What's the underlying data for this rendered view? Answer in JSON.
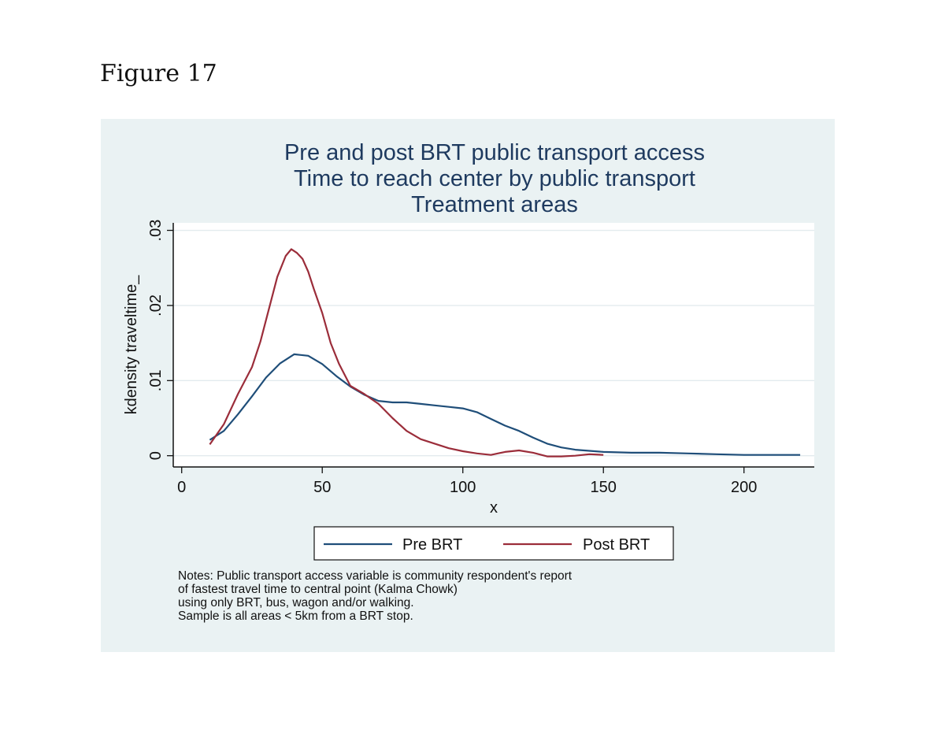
{
  "figure_label": "Figure 17",
  "chart_data": {
    "type": "line",
    "title": [
      "Pre and post BRT public transport access",
      "Time to reach center by public transport",
      "Treatment areas"
    ],
    "xlabel": "x",
    "ylabel": "kdensity traveltime_",
    "xlim": [
      -3,
      225
    ],
    "ylim": [
      -0.0015,
      0.031
    ],
    "xticks": [
      0,
      50,
      100,
      150,
      200
    ],
    "xtick_labels": [
      "0",
      "50",
      "100",
      "150",
      "200"
    ],
    "yticks": [
      0,
      0.01,
      0.02,
      0.03
    ],
    "ytick_labels": [
      "0",
      ".01",
      ".02",
      ".03"
    ],
    "grid": true,
    "legend": "bottom",
    "series": [
      {
        "name": "Pre BRT",
        "color": "#1f4e79",
        "x": [
          10,
          15,
          20,
          25,
          30,
          35,
          40,
          45,
          50,
          55,
          60,
          65,
          70,
          75,
          80,
          85,
          90,
          95,
          100,
          105,
          110,
          115,
          120,
          125,
          130,
          135,
          140,
          150,
          160,
          170,
          180,
          190,
          200,
          210,
          220
        ],
        "y": [
          0.0021,
          0.0033,
          0.0055,
          0.0079,
          0.0104,
          0.0123,
          0.0135,
          0.0133,
          0.0122,
          0.0106,
          0.0092,
          0.0081,
          0.0073,
          0.0071,
          0.0071,
          0.0069,
          0.0067,
          0.0065,
          0.0063,
          0.0058,
          0.0049,
          0.004,
          0.0033,
          0.0024,
          0.0016,
          0.0011,
          0.0008,
          0.0005,
          0.0004,
          0.0004,
          0.0003,
          0.0002,
          0.0001,
          0.0001,
          0.0001
        ]
      },
      {
        "name": "Post BRT",
        "color": "#9b2d3a",
        "x": [
          10,
          15,
          20,
          25,
          28,
          31,
          34,
          37,
          39,
          41,
          43,
          45,
          47,
          50,
          53,
          56,
          60,
          65,
          70,
          75,
          80,
          85,
          90,
          95,
          100,
          105,
          110,
          115,
          120,
          125,
          130,
          135,
          140,
          145,
          150
        ],
        "y": [
          0.0015,
          0.0042,
          0.0082,
          0.0118,
          0.0152,
          0.0195,
          0.0238,
          0.0266,
          0.0275,
          0.027,
          0.0262,
          0.0245,
          0.0222,
          0.019,
          0.015,
          0.0122,
          0.0093,
          0.0082,
          0.0069,
          0.005,
          0.0033,
          0.0022,
          0.0016,
          0.001,
          0.0006,
          0.0003,
          0.0001,
          0.0005,
          0.0007,
          0.0004,
          -0.0001,
          -0.0001,
          0.0,
          0.0002,
          0.0001
        ]
      }
    ]
  },
  "notes": [
    "Notes: Public transport access variable is community respondent's report",
    "of fastest travel time to central point (Kalma Chowk)",
    "using only BRT, bus, wagon and/or walking.",
    "Sample is all areas < 5km from a BRT stop."
  ]
}
